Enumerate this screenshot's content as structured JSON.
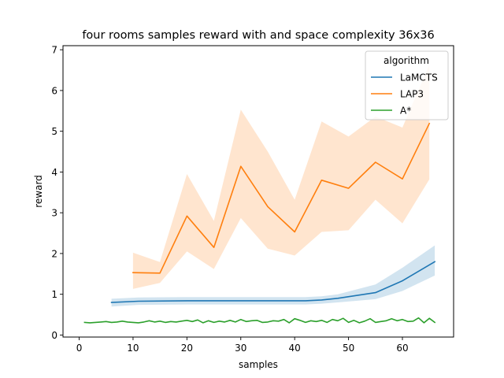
{
  "chart_data": {
    "type": "line",
    "title": "four rooms samples reward with and space complexity 36x36",
    "xlabel": "samples",
    "ylabel": "reward",
    "xlim": [
      -3,
      69.5
    ],
    "ylim": [
      -0.05,
      7.1
    ],
    "xticks": [
      0,
      10,
      20,
      30,
      40,
      50,
      60
    ],
    "yticks": [
      0,
      1,
      2,
      3,
      4,
      5,
      6,
      7
    ],
    "grid": false,
    "legend": {
      "title": "algorithm",
      "placement": "top-right"
    },
    "series": [
      {
        "name": "LaMCTS",
        "color": "#1f77b4",
        "x": [
          6,
          11,
          20,
          25,
          30,
          35,
          40,
          42,
          45,
          48,
          55,
          60,
          66
        ],
        "y": [
          0.8,
          0.83,
          0.84,
          0.84,
          0.84,
          0.84,
          0.84,
          0.84,
          0.86,
          0.9,
          1.04,
          1.33,
          1.8
        ],
        "lower": [
          0.7,
          0.74,
          0.75,
          0.75,
          0.75,
          0.75,
          0.75,
          0.75,
          0.77,
          0.8,
          0.88,
          1.08,
          1.46
        ],
        "upper": [
          0.89,
          0.92,
          0.93,
          0.93,
          0.93,
          0.93,
          0.93,
          0.93,
          0.95,
          1.0,
          1.24,
          1.65,
          2.2
        ]
      },
      {
        "name": "LAP3",
        "color": "#ff7f0e",
        "x": [
          10,
          15,
          20,
          25,
          30,
          35,
          40,
          45,
          50,
          55,
          60,
          65
        ],
        "y": [
          1.53,
          1.52,
          2.92,
          2.15,
          4.14,
          3.15,
          2.53,
          3.8,
          3.6,
          4.24,
          3.83,
          5.19
        ],
        "lower": [
          1.13,
          1.28,
          2.05,
          1.62,
          2.87,
          2.12,
          1.95,
          2.53,
          2.57,
          3.32,
          2.74,
          3.82
        ],
        "upper": [
          2.02,
          1.79,
          3.95,
          2.8,
          5.53,
          4.5,
          3.32,
          5.24,
          4.87,
          5.36,
          5.09,
          6.63
        ]
      },
      {
        "name": "A*",
        "color": "#2ca02c",
        "x": [
          1,
          2,
          3,
          4,
          5,
          6,
          7,
          8,
          9,
          10,
          11,
          12,
          13,
          14,
          15,
          16,
          17,
          18,
          19,
          20,
          21,
          22,
          23,
          24,
          25,
          26,
          27,
          28,
          29,
          30,
          31,
          32,
          33,
          34,
          35,
          36,
          37,
          38,
          39,
          40,
          41,
          42,
          43,
          44,
          45,
          46,
          47,
          48,
          49,
          50,
          51,
          52,
          53,
          54,
          55,
          56,
          57,
          58,
          59,
          60,
          61,
          62,
          63,
          64,
          65,
          66
        ],
        "y": [
          0.31,
          0.3,
          0.31,
          0.32,
          0.33,
          0.31,
          0.32,
          0.34,
          0.32,
          0.31,
          0.3,
          0.32,
          0.35,
          0.32,
          0.34,
          0.31,
          0.33,
          0.32,
          0.34,
          0.36,
          0.33,
          0.37,
          0.3,
          0.35,
          0.31,
          0.34,
          0.32,
          0.36,
          0.32,
          0.38,
          0.33,
          0.35,
          0.36,
          0.31,
          0.32,
          0.35,
          0.34,
          0.38,
          0.3,
          0.4,
          0.36,
          0.31,
          0.35,
          0.33,
          0.36,
          0.31,
          0.38,
          0.35,
          0.41,
          0.31,
          0.36,
          0.3,
          0.34,
          0.4,
          0.31,
          0.33,
          0.35,
          0.4,
          0.35,
          0.38,
          0.33,
          0.34,
          0.42,
          0.3,
          0.41,
          0.31
        ]
      }
    ]
  }
}
